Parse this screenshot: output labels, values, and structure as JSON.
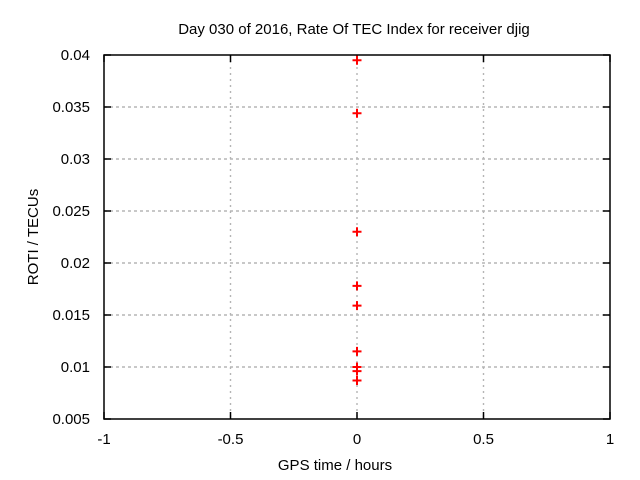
{
  "chart_data": {
    "type": "scatter",
    "title": "Day 030 of 2016, Rate Of TEC Index for receiver djig",
    "xlabel": "GPS time / hours",
    "ylabel": "ROTI / TECUs",
    "xlim": [
      -1,
      1
    ],
    "ylim": [
      0.005,
      0.04
    ],
    "grid": true,
    "legend_position": "none",
    "xticks": [
      {
        "value": -1,
        "label": "-1"
      },
      {
        "value": -0.5,
        "label": "-0.5"
      },
      {
        "value": 0,
        "label": "0"
      },
      {
        "value": 0.5,
        "label": "0.5"
      },
      {
        "value": 1,
        "label": "1"
      }
    ],
    "yticks": [
      {
        "value": 0.005,
        "label": "0.005"
      },
      {
        "value": 0.01,
        "label": "0.01"
      },
      {
        "value": 0.015,
        "label": "0.015"
      },
      {
        "value": 0.02,
        "label": "0.02"
      },
      {
        "value": 0.025,
        "label": "0.025"
      },
      {
        "value": 0.03,
        "label": "0.03"
      },
      {
        "value": 0.035,
        "label": "0.035"
      },
      {
        "value": 0.04,
        "label": "0.04"
      }
    ],
    "series": [
      {
        "name": "ROTI",
        "marker": "plus",
        "color": "#ff0000",
        "points": [
          {
            "x": 0,
            "y": 0.0395
          },
          {
            "x": 0,
            "y": 0.0344
          },
          {
            "x": 0,
            "y": 0.023
          },
          {
            "x": 0,
            "y": 0.0178
          },
          {
            "x": 0,
            "y": 0.0159
          },
          {
            "x": 0,
            "y": 0.0115
          },
          {
            "x": 0,
            "y": 0.01
          },
          {
            "x": 0,
            "y": 0.0096
          },
          {
            "x": 0,
            "y": 0.0087
          }
        ]
      }
    ]
  },
  "colors": {
    "background": "#ffffff",
    "axis": "#000000",
    "grid": "#b5b5b5",
    "text": "#000000"
  }
}
